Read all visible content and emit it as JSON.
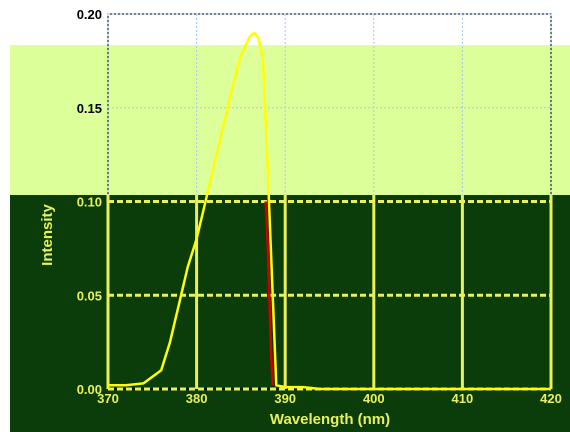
{
  "chart_data": {
    "type": "line",
    "title": "",
    "xlabel": "Wavelength (nm)",
    "ylabel": "Intensity",
    "xlim": [
      370,
      420
    ],
    "ylim": [
      0.0,
      0.2
    ],
    "x_ticks": [
      370,
      380,
      390,
      400,
      410,
      420
    ],
    "x_tick_labels": [
      "370",
      "380",
      "390",
      "400",
      "410",
      "420"
    ],
    "y_ticks": [
      0.0,
      0.05,
      0.1,
      0.15,
      0.2
    ],
    "y_tick_labels": [
      "0.00",
      "0.05",
      "0.10",
      "0.15",
      "0.20"
    ],
    "grid": true,
    "series": [
      {
        "name": "",
        "color": "#ffff00",
        "x": [
          370,
          372,
          374,
          376,
          377,
          378,
          379,
          380,
          381,
          382,
          383,
          384,
          385,
          386,
          386.5,
          387,
          387.5,
          388,
          389,
          390,
          391,
          392,
          394,
          396,
          398,
          400,
          402,
          404,
          406,
          408,
          410,
          412,
          414,
          416,
          418,
          420
        ],
        "y": [
          0.002,
          0.002,
          0.003,
          0.01,
          0.025,
          0.045,
          0.065,
          0.08,
          0.1,
          0.12,
          0.14,
          0.16,
          0.178,
          0.188,
          0.19,
          0.187,
          0.175,
          0.12,
          0.002,
          0.001,
          0.001,
          0.001,
          0.0,
          0.0,
          0.0,
          0.0,
          0.0,
          0.0,
          0.0,
          0.0,
          0.0,
          0.0,
          0.0,
          0.0,
          0.0,
          0.0
        ]
      },
      {
        "name": "",
        "color": "#cc0000",
        "x": [
          387.8,
          388.0,
          388.2,
          388.4,
          388.6
        ],
        "y": [
          0.1,
          0.08,
          0.05,
          0.02,
          0.002
        ]
      }
    ]
  },
  "colors": {
    "background_top": "#ddff99",
    "background_bottom": "#0a3d0a",
    "grid_light": "#a0c8ff",
    "grid_dark": "#e8f05a",
    "tick_text_light": "#000000",
    "tick_text_dark": "#e8f05a"
  }
}
